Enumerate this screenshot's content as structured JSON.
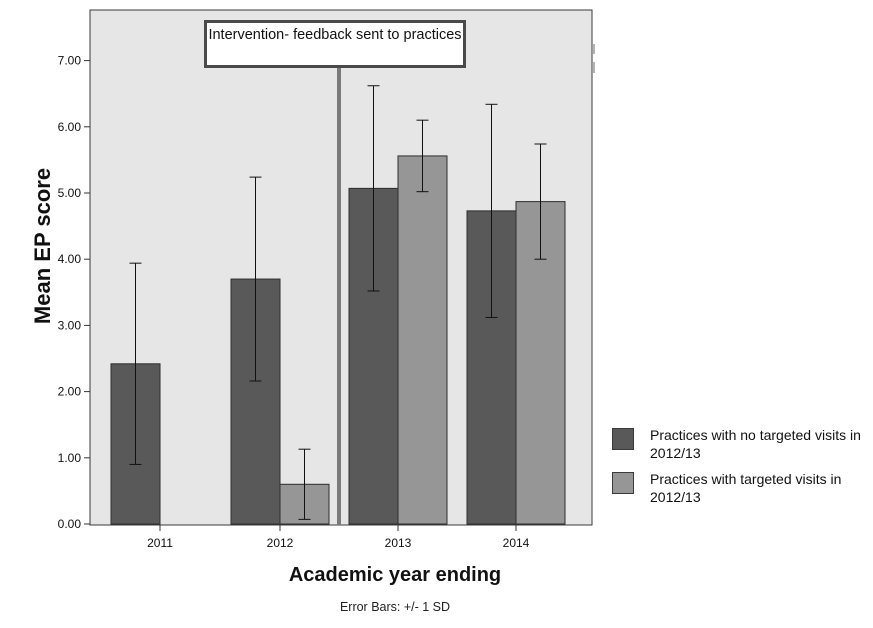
{
  "chart_data": {
    "type": "bar",
    "categories": [
      "2011",
      "2012",
      "2013",
      "2014"
    ],
    "series": [
      {
        "name": "Practices with no targeted visits in 2012/13",
        "color": "#595959",
        "values": [
          2.42,
          3.7,
          5.07,
          4.73
        ],
        "sd": [
          1.52,
          1.54,
          1.55,
          1.61
        ]
      },
      {
        "name": "Practices with targeted visits in 2012/13",
        "color": "#969696",
        "values": [
          null,
          0.6,
          5.56,
          4.87
        ],
        "sd": [
          null,
          0.53,
          0.54,
          0.87
        ]
      }
    ],
    "xlabel": "Academic year ending",
    "ylabel": "Mean EP score",
    "ylim": [
      0,
      7.4
    ],
    "yticks": [
      "0.00",
      "1.00",
      "2.00",
      "3.00",
      "4.00",
      "5.00",
      "6.00",
      "7.00"
    ],
    "annotation": {
      "text": "Intervention- feedback sent to practices",
      "x_position": "between 2012 and 2013"
    },
    "note": "Error Bars: +/- 1 SD",
    "plot_background": "#e6e6e6",
    "legend_position": "right"
  }
}
